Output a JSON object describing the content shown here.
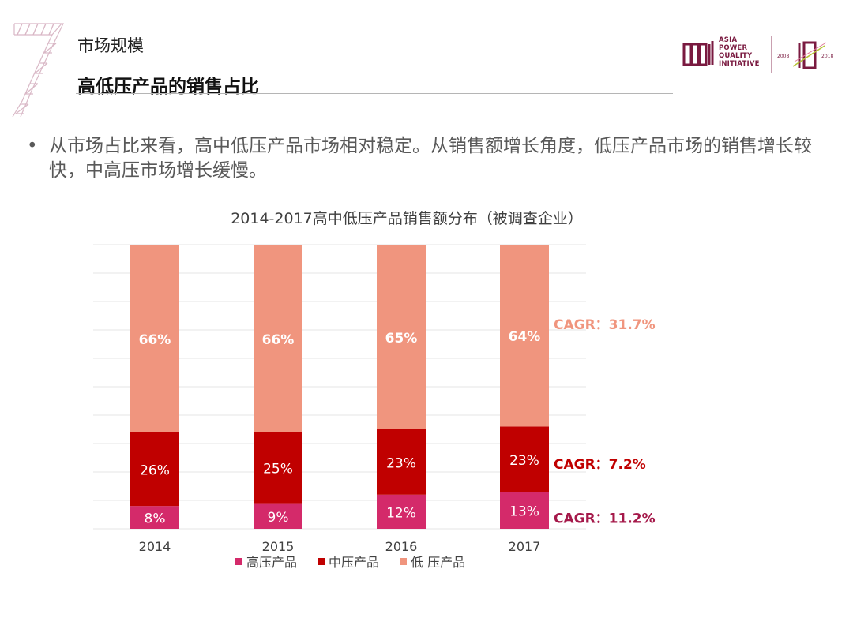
{
  "header": {
    "section_label": "市场规模",
    "slide_title": "高低压产品的销售占比",
    "logo": {
      "line1": "ASIA",
      "line2": "POWER",
      "line3": "QUALITY",
      "line4": "INITIATIVE",
      "year_start": "2008",
      "year_end": "2018"
    }
  },
  "bullet": {
    "marker": "•",
    "text": "从市场占比来看，高中低压产品市场相对稳定。从销售额增长角度，低压产品市场的销售增长较快，中高压市场增长缓慢。"
  },
  "colors": {
    "high": "#d42a6a",
    "mid": "#c00000",
    "low": "#f0957e",
    "grid": "#e4e4e4",
    "accent": "#a5194a"
  },
  "chart_data": {
    "type": "bar",
    "stacked": true,
    "title": "2014-2017高中低压产品销售额分布（被调查企业）",
    "categories": [
      "2014",
      "2015",
      "2016",
      "2017"
    ],
    "series": [
      {
        "name": "高压产品",
        "values": [
          8,
          9,
          12,
          13
        ],
        "labels": [
          "8%",
          "9%",
          "12%",
          "13%"
        ]
      },
      {
        "name": "中压产品",
        "values": [
          26,
          25,
          23,
          23
        ],
        "labels": [
          "26%",
          "25%",
          "23%",
          "23%"
        ]
      },
      {
        "name": "低 压产品",
        "values": [
          66,
          66,
          65,
          64
        ],
        "labels": [
          "66%",
          "66%",
          "65%",
          "64%"
        ]
      }
    ],
    "annotations": [
      {
        "series": "低 压产品",
        "text": "CAGR：31.7%"
      },
      {
        "series": "中压产品",
        "text": "CAGR：7.2%"
      },
      {
        "series": "高压产品",
        "text": "CAGR：11.2%"
      }
    ],
    "ylim": [
      0,
      100
    ],
    "grid": true,
    "legend_position": "bottom"
  }
}
